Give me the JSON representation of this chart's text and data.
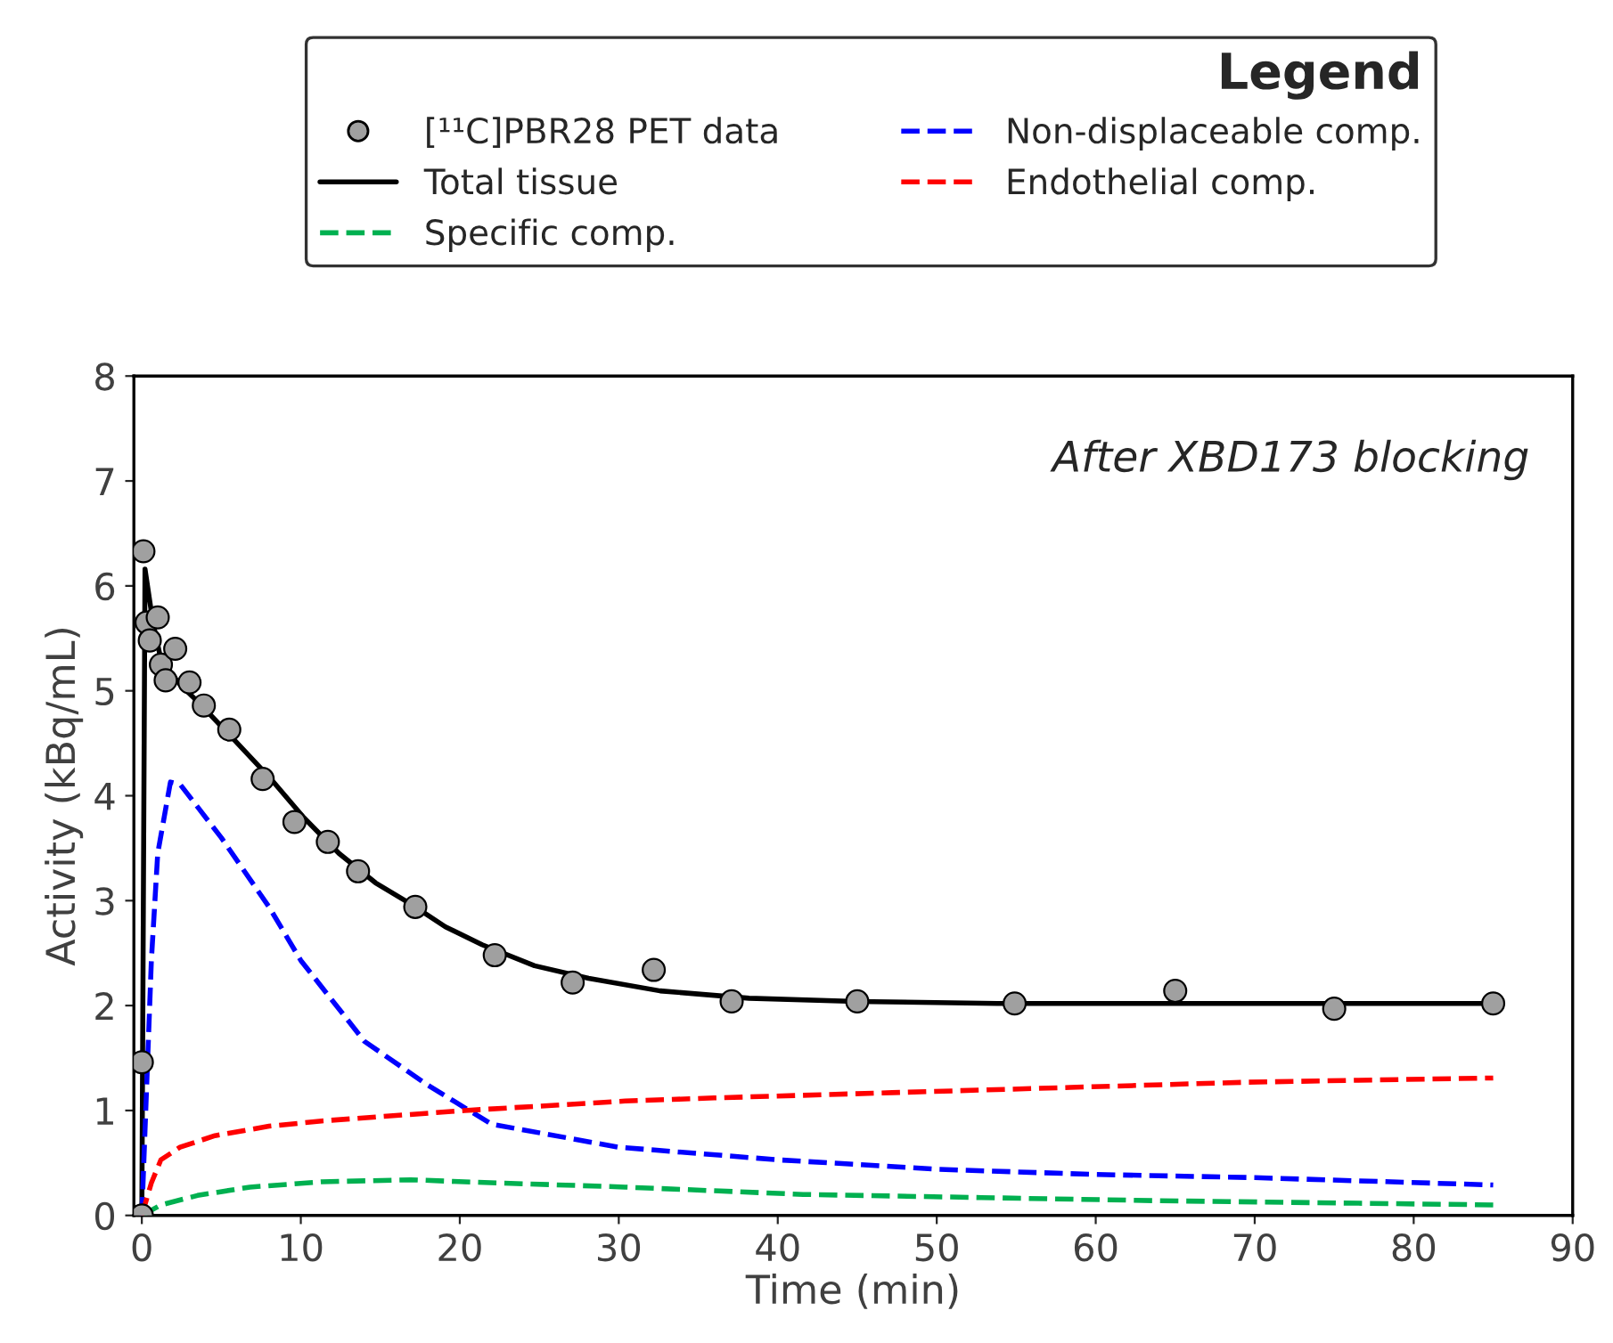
{
  "chart_data": {
    "type": "line",
    "xlabel": "Time (min)",
    "ylabel": "Activity (kBq/mL)",
    "legend_title": "Legend",
    "legend": "top",
    "annotations": [
      "After XBD173 blocking"
    ],
    "xlim": [
      -0.5,
      90
    ],
    "xticks": [
      0,
      10,
      20,
      30,
      40,
      50,
      60,
      70,
      80,
      90
    ],
    "ylim": [
      0,
      8
    ],
    "yticks": [
      0,
      1,
      2,
      3,
      4,
      5,
      6,
      7,
      8
    ],
    "grid": false,
    "series": [
      {
        "name": "[¹¹C]PBR28 PET data",
        "type": "scatter",
        "marker": "circle",
        "color": "#a0a0a0",
        "x": [
          0,
          0,
          0.1,
          0.3,
          0.5,
          1.0,
          1.2,
          1.5,
          2.1,
          3.0,
          3.9,
          5.5,
          7.6,
          9.6,
          11.7,
          13.6,
          17.2,
          22.2,
          27.1,
          32.2,
          37.1,
          45,
          54.9,
          65,
          75,
          85
        ],
        "values": [
          0,
          1.46,
          6.33,
          5.65,
          5.48,
          5.7,
          5.25,
          5.1,
          5.4,
          5.08,
          4.86,
          4.63,
          4.16,
          3.75,
          3.56,
          3.28,
          2.94,
          2.48,
          2.22,
          2.34,
          2.04,
          2.04,
          2.02,
          2.14,
          1.97,
          2.02
        ]
      },
      {
        "name": "Total tissue",
        "line_style": "solid",
        "color": "#000000",
        "x": [
          0,
          0.2,
          0.7,
          1.2,
          2.4,
          3.5,
          5.7,
          8,
          10.2,
          12.4,
          14.7,
          16.9,
          19.1,
          21.4,
          24.7,
          28.1,
          32.6,
          38.2,
          44.9,
          53.8,
          69.5,
          85
        ],
        "values": [
          0,
          6.16,
          5.65,
          5.3,
          5.06,
          4.9,
          4.55,
          4.18,
          3.79,
          3.45,
          3.17,
          2.97,
          2.75,
          2.58,
          2.38,
          2.26,
          2.14,
          2.07,
          2.04,
          2.02,
          2.02,
          2.02
        ]
      },
      {
        "name": "Specific comp.",
        "line_style": "dashed",
        "color": "#00b050",
        "x": [
          0,
          1.2,
          3.5,
          6.8,
          11.3,
          16.9,
          20.3,
          30.4,
          41.6,
          52.8,
          64,
          85
        ],
        "values": [
          0,
          0.1,
          0.19,
          0.27,
          0.32,
          0.34,
          0.32,
          0.27,
          0.2,
          0.17,
          0.14,
          0.1
        ]
      },
      {
        "name": "Non-displaceable comp.",
        "line_style": "dashed",
        "color": "#0000ff",
        "x": [
          0,
          0.6,
          1,
          1.8,
          2.4,
          5,
          8,
          10,
          14,
          18,
          22,
          30,
          40,
          50,
          60,
          70,
          85
        ],
        "values": [
          0,
          2.43,
          3.45,
          4.13,
          4.11,
          3.6,
          2.94,
          2.43,
          1.66,
          1.24,
          0.87,
          0.65,
          0.53,
          0.44,
          0.39,
          0.36,
          0.29
        ]
      },
      {
        "name": "Endothelial comp.",
        "line_style": "dashed",
        "color": "#ff0000",
        "x": [
          0,
          0.6,
          1.2,
          2.4,
          4.6,
          8,
          11.3,
          15.8,
          20.3,
          24.8,
          30.4,
          36,
          47.2,
          58.4,
          69.6,
          85
        ],
        "values": [
          0,
          0.31,
          0.53,
          0.65,
          0.76,
          0.85,
          0.9,
          0.95,
          1.0,
          1.04,
          1.09,
          1.12,
          1.17,
          1.22,
          1.27,
          1.31
        ]
      }
    ]
  }
}
